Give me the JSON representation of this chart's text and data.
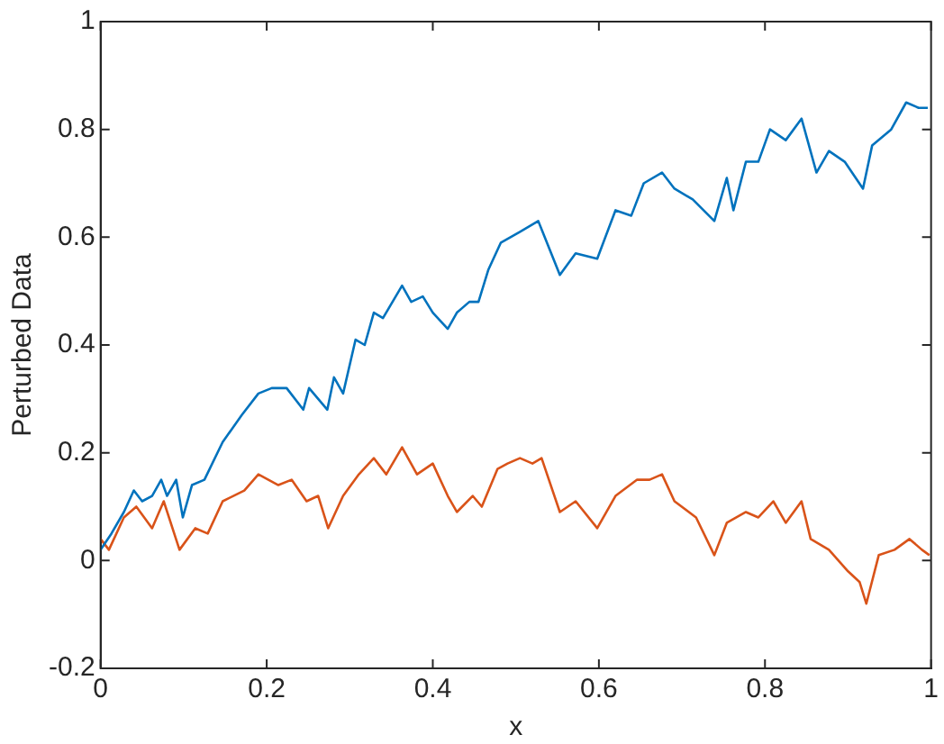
{
  "chart_data": {
    "type": "line",
    "xlabel": "x",
    "ylabel": "Perturbed Data",
    "xlim": [
      0,
      1
    ],
    "ylim": [
      -0.2,
      1
    ],
    "xticks": [
      0,
      0.2,
      0.4,
      0.6,
      0.8,
      1
    ],
    "yticks": [
      -0.2,
      0,
      0.2,
      0.4,
      0.6,
      0.8,
      1
    ],
    "grid": false,
    "legend": false,
    "marker": "none",
    "line_style": "solid",
    "series": [
      {
        "color": "#0072bd",
        "x": [
          0,
          0.013,
          0.028,
          0.04,
          0.05,
          0.062,
          0.073,
          0.08,
          0.091,
          0.099,
          0.11,
          0.125,
          0.147,
          0.17,
          0.19,
          0.206,
          0.224,
          0.244,
          0.251,
          0.273,
          0.281,
          0.292,
          0.307,
          0.318,
          0.329,
          0.34,
          0.363,
          0.374,
          0.388,
          0.4,
          0.418,
          0.429,
          0.444,
          0.455,
          0.467,
          0.482,
          0.505,
          0.527,
          0.553,
          0.572,
          0.598,
          0.62,
          0.639,
          0.654,
          0.676,
          0.691,
          0.713,
          0.739,
          0.754,
          0.762,
          0.777,
          0.792,
          0.806,
          0.825,
          0.844,
          0.862,
          0.877,
          0.896,
          0.918,
          0.929,
          0.952,
          0.97,
          0.985,
          0.996
        ],
        "values": [
          0.02,
          0.05,
          0.09,
          0.13,
          0.11,
          0.12,
          0.15,
          0.12,
          0.15,
          0.08,
          0.14,
          0.15,
          0.22,
          0.27,
          0.31,
          0.32,
          0.32,
          0.28,
          0.32,
          0.28,
          0.34,
          0.31,
          0.41,
          0.4,
          0.46,
          0.45,
          0.51,
          0.48,
          0.49,
          0.46,
          0.43,
          0.46,
          0.48,
          0.48,
          0.54,
          0.59,
          0.61,
          0.63,
          0.53,
          0.57,
          0.56,
          0.65,
          0.64,
          0.7,
          0.72,
          0.69,
          0.67,
          0.63,
          0.71,
          0.65,
          0.74,
          0.74,
          0.8,
          0.78,
          0.82,
          0.72,
          0.76,
          0.74,
          0.69,
          0.77,
          0.8,
          0.85,
          0.84,
          0.84
        ]
      },
      {
        "color": "#d95319",
        "x": [
          0,
          0.01,
          0.028,
          0.043,
          0.062,
          0.076,
          0.095,
          0.114,
          0.129,
          0.147,
          0.173,
          0.19,
          0.214,
          0.23,
          0.248,
          0.262,
          0.274,
          0.292,
          0.311,
          0.329,
          0.344,
          0.363,
          0.381,
          0.4,
          0.418,
          0.429,
          0.448,
          0.459,
          0.478,
          0.49,
          0.505,
          0.52,
          0.531,
          0.553,
          0.572,
          0.598,
          0.62,
          0.646,
          0.661,
          0.676,
          0.691,
          0.717,
          0.739,
          0.754,
          0.777,
          0.792,
          0.81,
          0.825,
          0.844,
          0.855,
          0.877,
          0.9,
          0.914,
          0.922,
          0.937,
          0.956,
          0.974,
          0.989,
          0.998
        ],
        "values": [
          0.04,
          0.02,
          0.08,
          0.1,
          0.06,
          0.11,
          0.02,
          0.06,
          0.05,
          0.11,
          0.13,
          0.16,
          0.14,
          0.15,
          0.11,
          0.12,
          0.06,
          0.12,
          0.16,
          0.19,
          0.16,
          0.21,
          0.16,
          0.18,
          0.12,
          0.09,
          0.12,
          0.1,
          0.17,
          0.18,
          0.19,
          0.18,
          0.19,
          0.09,
          0.11,
          0.06,
          0.12,
          0.15,
          0.15,
          0.16,
          0.11,
          0.08,
          0.01,
          0.07,
          0.09,
          0.08,
          0.11,
          0.07,
          0.11,
          0.04,
          0.02,
          -0.02,
          -0.04,
          -0.08,
          0.01,
          0.02,
          0.04,
          0.02,
          0.01
        ]
      }
    ]
  }
}
